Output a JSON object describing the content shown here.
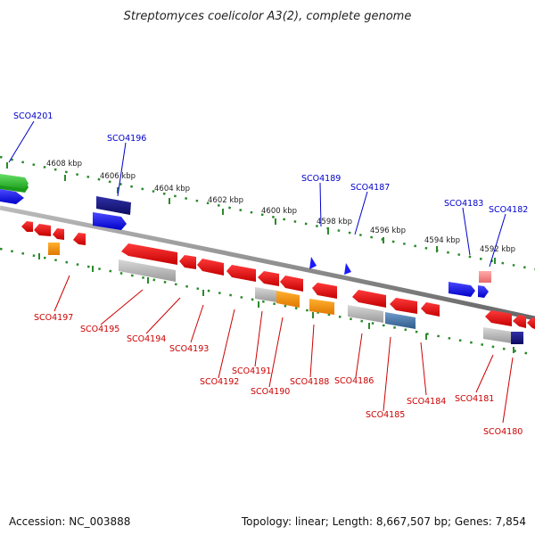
{
  "title": "Streptomyces coelicolor A3(2), complete genome",
  "scale_labels": [
    "4608 kbp",
    "4606 kbp",
    "4604 kbp",
    "4602 kbp",
    "4600 kbp",
    "4598 kbp",
    "4596 kbp",
    "4594 kbp",
    "4592 kbp"
  ],
  "forward_gene_labels": [
    "SCO4201",
    "SCO4196",
    "SCO4189",
    "SCO4187",
    "SCO4183",
    "SCO4182"
  ],
  "reverse_gene_labels": [
    "SCO4197",
    "SCO4195",
    "SCO4194",
    "SCO4193",
    "SCO4192",
    "SCO4191",
    "SCO4190",
    "SCO4188",
    "SCO4186",
    "SCO4185",
    "SCO4184",
    "SCO4181",
    "SCO4180"
  ],
  "footer": {
    "accession": "Accession: NC_003888",
    "summary": "Topology: linear; Length: 8,667,507 bp; Genes: 7,854"
  },
  "colors": {
    "forward": "#1a1aff",
    "reverse": "#ee1111",
    "backbone": "#888888",
    "ticks": "#2a8a2a",
    "gray_feature": "#b8b8b8",
    "orange_feature": "#ff9900",
    "green_feature": "#33cc33",
    "navy_feature": "#1a1a88",
    "steel_feature": "#4477aa",
    "pink_feature": "#ff8888"
  }
}
